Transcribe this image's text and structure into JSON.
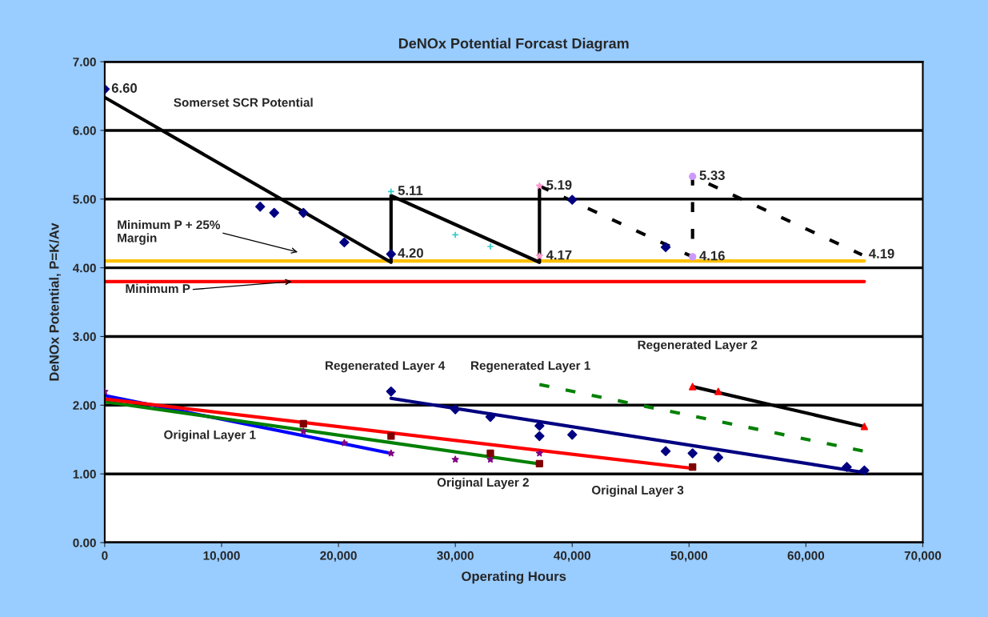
{
  "chart_data": {
    "type": "line",
    "title": "DeNOx Potential Forcast Diagram",
    "xlabel": "Operating Hours",
    "ylabel": "DeNOx Potential, P=K/Av",
    "xlim": [
      0,
      70000
    ],
    "xticks": [
      {
        "value": 0,
        "label": "0"
      },
      {
        "value": 10000,
        "label": "10,000"
      },
      {
        "value": 20000,
        "label": "20,000"
      },
      {
        "value": 30000,
        "label": "30,000"
      },
      {
        "value": 40000,
        "label": "40,000"
      },
      {
        "value": 50000,
        "label": "50,000"
      },
      {
        "value": 60000,
        "label": "60,000"
      },
      {
        "value": 70000,
        "label": "70,000"
      }
    ],
    "ylim": [
      0,
      7
    ],
    "yticks": [
      {
        "value": 0,
        "label": "0.00"
      },
      {
        "value": 1,
        "label": "1.00"
      },
      {
        "value": 2,
        "label": "2.00"
      },
      {
        "value": 3,
        "label": "3.00"
      },
      {
        "value": 4,
        "label": "4.00"
      },
      {
        "value": 5,
        "label": "5.00"
      },
      {
        "value": 6,
        "label": "6.00"
      },
      {
        "value": 7,
        "label": "7.00"
      }
    ],
    "grid": "y",
    "legend": false,
    "series": [
      {
        "type": "line",
        "color": "#ffc000",
        "x": [
          0,
          65000
        ],
        "values": [
          4.1,
          4.1
        ]
      },
      {
        "type": "line",
        "color": "#ff0000",
        "x": [
          0,
          65000
        ],
        "values": [
          3.8,
          3.8
        ]
      },
      {
        "type": "line",
        "color": "#000000",
        "x": [
          0,
          24500,
          24500,
          37200,
          37200
        ],
        "values": [
          6.48,
          4.08,
          5.05,
          4.08,
          5.19
        ]
      },
      {
        "type": "line",
        "color": "#000000",
        "line_style": "dashed",
        "x": [
          37200,
          50300,
          50300,
          64800
        ],
        "values": [
          5.19,
          4.16,
          5.33,
          4.19
        ]
      },
      {
        "type": "scatter",
        "marker": "diamond",
        "color": "#000080",
        "x": [
          0,
          13300,
          14500,
          17000,
          20500,
          24500,
          40000,
          48000
        ],
        "values": [
          6.6,
          4.89,
          4.8,
          4.8,
          4.37,
          4.2,
          4.99,
          4.3
        ]
      },
      {
        "type": "scatter",
        "marker": "cross",
        "color": "#33cccc",
        "x": [
          24500,
          30000,
          33000
        ],
        "values": [
          5.11,
          4.48,
          4.31
        ]
      },
      {
        "type": "scatter",
        "marker": "star",
        "color": "#ff99cc",
        "x": [
          37200,
          37200
        ],
        "values": [
          5.19,
          4.17
        ]
      },
      {
        "type": "scatter",
        "marker": "circle",
        "color": "#cc99ff",
        "x": [
          50300,
          50300
        ],
        "values": [
          5.33,
          4.16
        ]
      },
      {
        "type": "line",
        "color": "#0000ff",
        "x": [
          0,
          24500
        ],
        "values": [
          2.14,
          1.3
        ]
      },
      {
        "type": "line",
        "color": "#008000",
        "x": [
          0,
          37000
        ],
        "values": [
          2.05,
          1.15
        ]
      },
      {
        "type": "line",
        "color": "#ff0000",
        "x": [
          0,
          50300
        ],
        "values": [
          2.09,
          1.08
        ]
      },
      {
        "type": "line",
        "color": "#000080",
        "x": [
          24500,
          65000
        ],
        "values": [
          2.1,
          1.02
        ]
      },
      {
        "type": "line",
        "color": "#008000",
        "line_style": "dashed",
        "x": [
          37200,
          65000
        ],
        "values": [
          2.3,
          1.33
        ]
      },
      {
        "type": "line",
        "color": "#000000",
        "x": [
          50300,
          65000
        ],
        "values": [
          2.27,
          1.69
        ]
      },
      {
        "type": "scatter",
        "marker": "diamond",
        "color": "#000080",
        "x": [
          24500,
          30000,
          33000,
          37200,
          37200,
          40000,
          48000,
          50300,
          52500,
          63500,
          65000
        ],
        "values": [
          2.2,
          1.94,
          1.83,
          1.7,
          1.55,
          1.57,
          1.33,
          1.3,
          1.24,
          1.1,
          1.05
        ]
      },
      {
        "type": "scatter",
        "marker": "star",
        "color": "#800080",
        "x": [
          0,
          17000,
          20500,
          24500,
          30000,
          33000,
          37200
        ],
        "values": [
          2.2,
          1.62,
          1.45,
          1.3,
          1.21,
          1.21,
          1.3
        ]
      },
      {
        "type": "scatter",
        "marker": "square",
        "color": "#800000",
        "x": [
          17000,
          24500,
          33000,
          37200,
          50300
        ],
        "values": [
          1.73,
          1.55,
          1.3,
          1.15,
          1.1
        ]
      },
      {
        "type": "scatter",
        "marker": "triangle",
        "color": "#ff0000",
        "x": [
          50300,
          52500,
          65000
        ],
        "values": [
          2.27,
          2.2,
          1.69
        ]
      }
    ],
    "annotations": [
      {
        "text": "6.60",
        "x": 0,
        "y": 6.6
      },
      {
        "text": "5.11",
        "x": 24500,
        "y": 5.11
      },
      {
        "text": "4.20",
        "x": 24500,
        "y": 4.2
      },
      {
        "text": "5.19",
        "x": 37200,
        "y": 5.19
      },
      {
        "text": "4.17",
        "x": 37200,
        "y": 4.17
      },
      {
        "text": "5.33",
        "x": 50300,
        "y": 5.33
      },
      {
        "text": "4.16",
        "x": 50300,
        "y": 4.16
      },
      {
        "text": "4.19",
        "x": 64800,
        "y": 4.19
      },
      "Somerset SCR Potential",
      "Minimum P + 25%\nMargin",
      {
        "text": "Minimum P",
        "x": 16000,
        "y": 3.8
      },
      "Regenerated Layer 4",
      "Regenerated Layer 1",
      "Regenerated Layer 2",
      "Original Layer 1",
      "Original Layer 2",
      "Original Layer 3"
    ]
  }
}
